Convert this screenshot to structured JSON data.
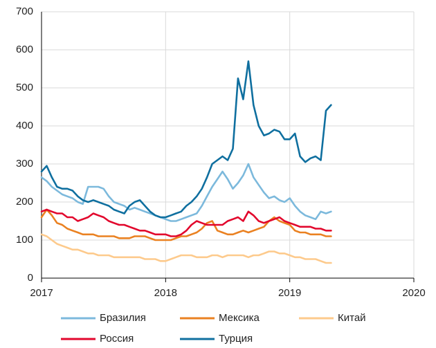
{
  "chart_data": {
    "type": "line",
    "x": [
      2017,
      2017.042,
      2017.083,
      2017.125,
      2017.167,
      2017.208,
      2017.25,
      2017.292,
      2017.333,
      2017.375,
      2017.417,
      2017.458,
      2017.5,
      2017.542,
      2017.583,
      2017.625,
      2017.667,
      2017.708,
      2017.75,
      2017.792,
      2017.833,
      2017.875,
      2017.917,
      2017.958,
      2018,
      2018.042,
      2018.083,
      2018.125,
      2018.167,
      2018.208,
      2018.25,
      2018.292,
      2018.333,
      2018.375,
      2018.417,
      2018.458,
      2018.5,
      2018.542,
      2018.583,
      2018.625,
      2018.667,
      2018.708,
      2018.75,
      2018.792,
      2018.833,
      2018.875,
      2018.917,
      2018.958,
      2019,
      2019.042,
      2019.083,
      2019.125,
      2019.167,
      2019.208,
      2019.25,
      2019.292,
      2019.333
    ],
    "series": [
      {
        "name": "Бразилия",
        "color": "#7cb9dc",
        "values": [
          265,
          255,
          240,
          230,
          220,
          215,
          210,
          200,
          195,
          240,
          240,
          240,
          235,
          215,
          200,
          195,
          190,
          180,
          185,
          180,
          175,
          170,
          165,
          160,
          155,
          150,
          150,
          155,
          160,
          165,
          170,
          190,
          215,
          240,
          260,
          280,
          260,
          235,
          250,
          270,
          300,
          265,
          245,
          225,
          210,
          215,
          205,
          200,
          210,
          190,
          175,
          165,
          160,
          155,
          175,
          170,
          175
        ]
      },
      {
        "name": "Мексика",
        "color": "#ea8121",
        "values": [
          160,
          180,
          165,
          145,
          140,
          130,
          125,
          120,
          115,
          115,
          115,
          110,
          110,
          110,
          110,
          105,
          105,
          105,
          110,
          110,
          110,
          105,
          100,
          100,
          100,
          100,
          105,
          110,
          110,
          115,
          120,
          130,
          145,
          150,
          125,
          120,
          115,
          115,
          120,
          125,
          120,
          125,
          130,
          135,
          150,
          160,
          150,
          145,
          140,
          125,
          120,
          120,
          115,
          115,
          115,
          110,
          110
        ]
      },
      {
        "name": "Китай",
        "color": "#fdca8c",
        "values": [
          115,
          110,
          100,
          90,
          85,
          80,
          75,
          75,
          70,
          65,
          65,
          60,
          60,
          60,
          55,
          55,
          55,
          55,
          55,
          55,
          50,
          50,
          50,
          45,
          45,
          50,
          55,
          60,
          60,
          60,
          55,
          55,
          55,
          60,
          60,
          55,
          60,
          60,
          60,
          60,
          55,
          60,
          60,
          65,
          70,
          70,
          65,
          65,
          60,
          55,
          55,
          50,
          50,
          50,
          45,
          40,
          40
        ]
      },
      {
        "name": "Россия",
        "color": "#e2062c",
        "values": [
          175,
          180,
          175,
          170,
          170,
          160,
          160,
          150,
          155,
          160,
          170,
          165,
          160,
          150,
          145,
          140,
          140,
          135,
          130,
          125,
          125,
          120,
          115,
          115,
          115,
          110,
          110,
          115,
          125,
          140,
          150,
          145,
          140,
          140,
          140,
          140,
          150,
          155,
          160,
          150,
          175,
          165,
          150,
          145,
          150,
          155,
          160,
          150,
          145,
          140,
          135,
          135,
          135,
          130,
          130,
          125,
          125
        ]
      },
      {
        "name": "Турция",
        "color": "#0f6f9f",
        "values": [
          280,
          295,
          265,
          240,
          235,
          235,
          230,
          215,
          205,
          200,
          205,
          200,
          195,
          190,
          180,
          175,
          170,
          190,
          200,
          205,
          190,
          175,
          165,
          160,
          160,
          165,
          170,
          175,
          190,
          200,
          215,
          235,
          265,
          300,
          310,
          320,
          310,
          340,
          525,
          470,
          570,
          455,
          400,
          375,
          380,
          390,
          385,
          365,
          365,
          380,
          320,
          305,
          315,
          320,
          310,
          440,
          455
        ]
      }
    ],
    "xlim": [
      2017,
      2020
    ],
    "xticks": [
      2017,
      2018,
      2019,
      2020
    ],
    "ylim": [
      0,
      700
    ],
    "yticks": [
      0,
      100,
      200,
      300,
      400,
      500,
      600,
      700
    ],
    "grid": true
  }
}
